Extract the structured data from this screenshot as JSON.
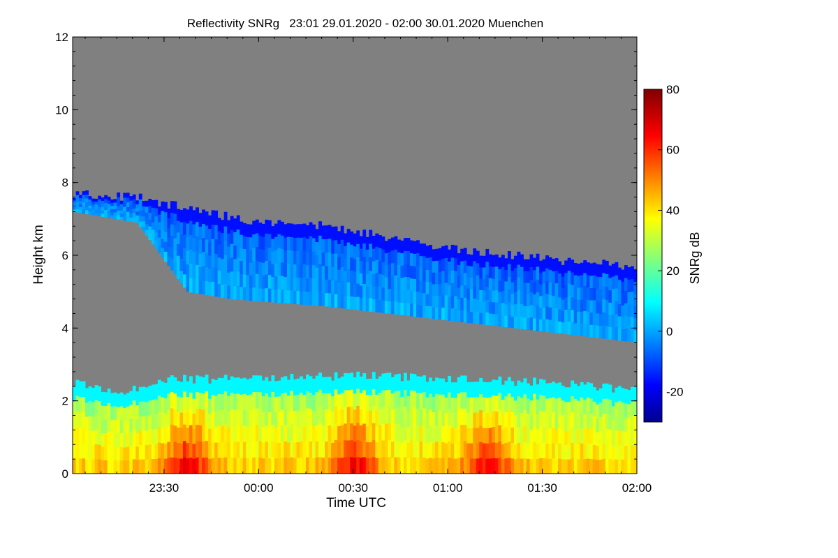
{
  "chart_data": {
    "type": "heatmap",
    "title": "Reflectivity SNRg   23:01 29.01.2020 - 02:00 30.01.2020 Muenchen",
    "xlabel": "Time UTC",
    "ylabel": "Height km",
    "x_start": "23:01",
    "x_end": "02:00",
    "xlim_minutes": [
      0,
      179
    ],
    "x_ticks": [
      {
        "label": "23:30",
        "minutes": 29
      },
      {
        "label": "00:00",
        "minutes": 59
      },
      {
        "label": "00:30",
        "minutes": 89
      },
      {
        "label": "01:00",
        "minutes": 119
      },
      {
        "label": "01:30",
        "minutes": 149
      },
      {
        "label": "02:00",
        "minutes": 179
      }
    ],
    "ylim": [
      0,
      12
    ],
    "y_ticks": [
      0,
      2,
      4,
      6,
      8,
      10,
      12
    ],
    "background_color": "#808080",
    "colorbar": {
      "label": "SNRg dB",
      "range": [
        -30,
        80
      ],
      "ticks": [
        -20,
        0,
        20,
        40,
        60,
        80
      ],
      "colormap": "jet"
    },
    "features": [
      {
        "name": "upper cloud layer",
        "time_start_min": 0,
        "time_end_min": 179,
        "top_km": [
          [
            0,
            7.7
          ],
          [
            20,
            7.6
          ],
          [
            40,
            7.2
          ],
          [
            60,
            6.9
          ],
          [
            80,
            6.8
          ],
          [
            100,
            6.5
          ],
          [
            120,
            6.2
          ],
          [
            140,
            6.0
          ],
          [
            160,
            5.8
          ],
          [
            179,
            5.7
          ]
        ],
        "base_km": [
          [
            0,
            7.2
          ],
          [
            20,
            6.9
          ],
          [
            36,
            5.0
          ],
          [
            50,
            4.8
          ],
          [
            80,
            4.6
          ],
          [
            100,
            4.4
          ],
          [
            120,
            4.2
          ],
          [
            140,
            4.0
          ],
          [
            160,
            3.8
          ],
          [
            179,
            3.6
          ]
        ],
        "snr_db_range": [
          -20,
          15
        ]
      },
      {
        "name": "lower precipitation layer",
        "time_start_min": 0,
        "time_end_min": 179,
        "top_km": [
          [
            0,
            2.5
          ],
          [
            15,
            2.2
          ],
          [
            28,
            2.6
          ],
          [
            60,
            2.6
          ],
          [
            90,
            2.7
          ],
          [
            120,
            2.6
          ],
          [
            150,
            2.5
          ],
          [
            179,
            2.3
          ]
        ],
        "base_km": 0,
        "snr_db_range": [
          0,
          70
        ],
        "max_snr_times_min": [
          36,
          89,
          131
        ]
      }
    ]
  }
}
